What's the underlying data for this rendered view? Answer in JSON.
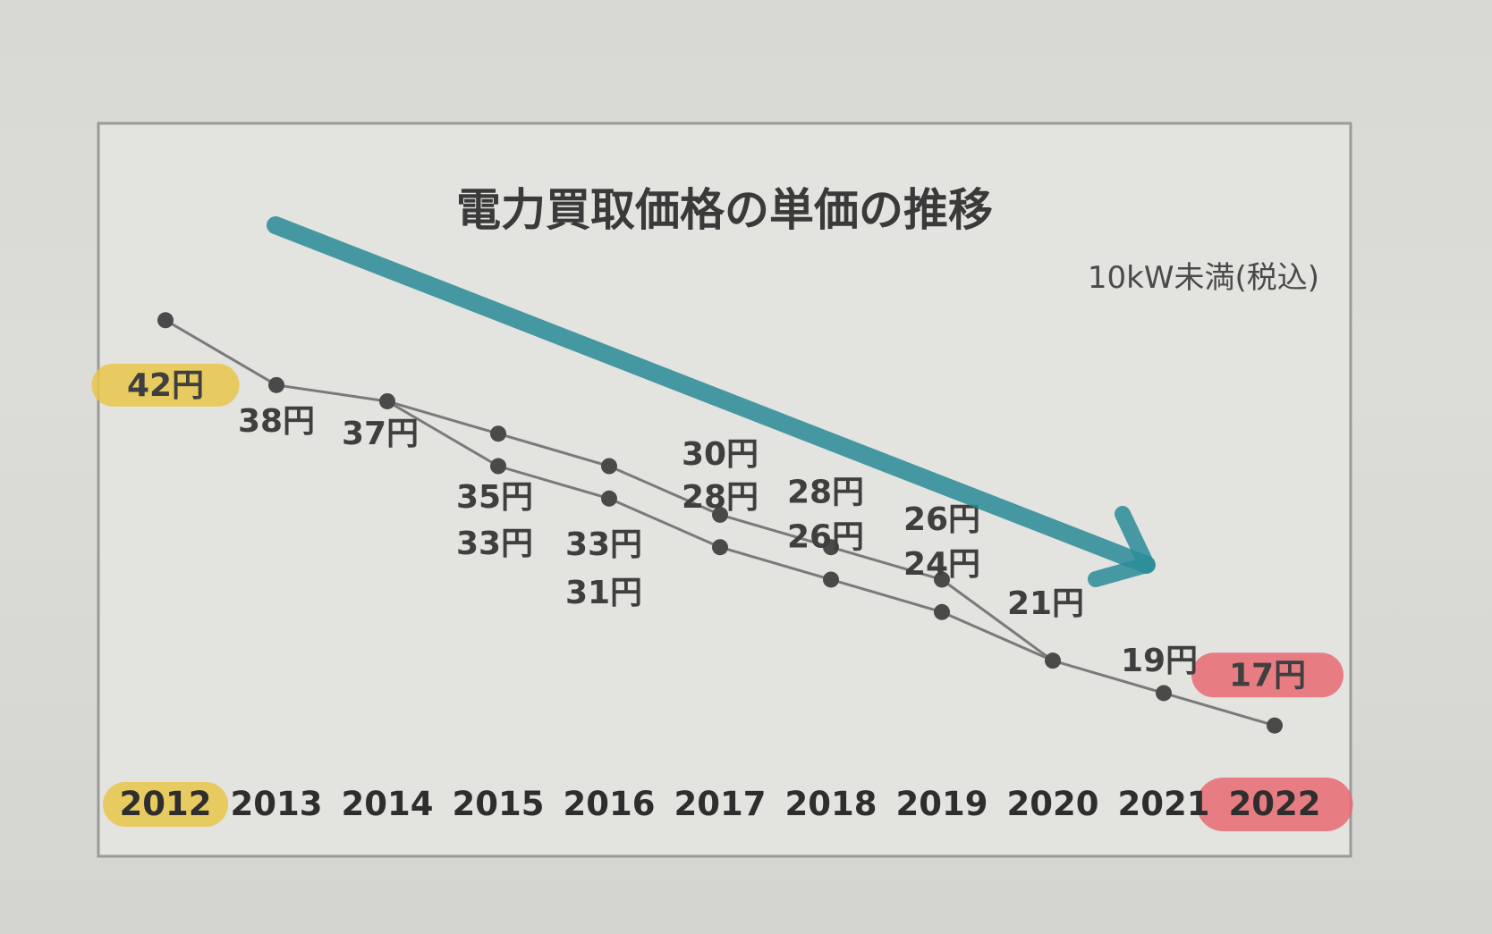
{
  "chart_data": {
    "type": "line",
    "title": "電力買取価格の単価の推移",
    "subtitle": "10kW未満(税込)",
    "x": [
      "2012",
      "2013",
      "2014",
      "2015",
      "2016",
      "2017",
      "2018",
      "2019",
      "2020",
      "2021",
      "2022"
    ],
    "series": [
      {
        "values": [
          42,
          38,
          37,
          35,
          33,
          30,
          28,
          26,
          21,
          19,
          17
        ]
      },
      {
        "values": [
          null,
          null,
          37,
          33,
          31,
          28,
          26,
          24,
          21,
          null,
          null
        ]
      }
    ],
    "value_labels": [
      {
        "year": "2012",
        "text": "42円"
      },
      {
        "year": "2013",
        "text": "38円"
      },
      {
        "year": "2014",
        "text": "37円"
      },
      {
        "year": "2015",
        "text": "35円"
      },
      {
        "year": "2015",
        "text": "33円"
      },
      {
        "year": "2016",
        "text": "33円"
      },
      {
        "year": "2016",
        "text": "31円"
      },
      {
        "year": "2017",
        "text": "30円"
      },
      {
        "year": "2017",
        "text": "28円"
      },
      {
        "year": "2018",
        "text": "28円"
      },
      {
        "year": "2018",
        "text": "26円"
      },
      {
        "year": "2019",
        "text": "26円"
      },
      {
        "year": "2019",
        "text": "24円"
      },
      {
        "year": "2020",
        "text": "21円"
      },
      {
        "year": "2021",
        "text": "19円"
      },
      {
        "year": "2022",
        "text": "17円"
      }
    ],
    "xlabel": "",
    "ylabel": "",
    "ylim": [
      15,
      44
    ],
    "grid": false,
    "highlights": [
      {
        "target": "2012",
        "color": "#e8c64a"
      },
      {
        "target": "42円",
        "color": "#e8c64a"
      },
      {
        "target": "2022",
        "color": "#e86a72"
      },
      {
        "target": "17円",
        "color": "#e86a72"
      }
    ],
    "annotation_arrow": {
      "direction": "down-right",
      "color": "#2a8c98"
    }
  },
  "colors": {
    "background": "#dadad6",
    "frame_fill": "#e3e3df",
    "line": "#7a7a7a",
    "point": "#4a4a4a",
    "highlight_yellow": "#e8c64a",
    "highlight_red": "#e86a72",
    "arrow": "#2a8c98"
  }
}
